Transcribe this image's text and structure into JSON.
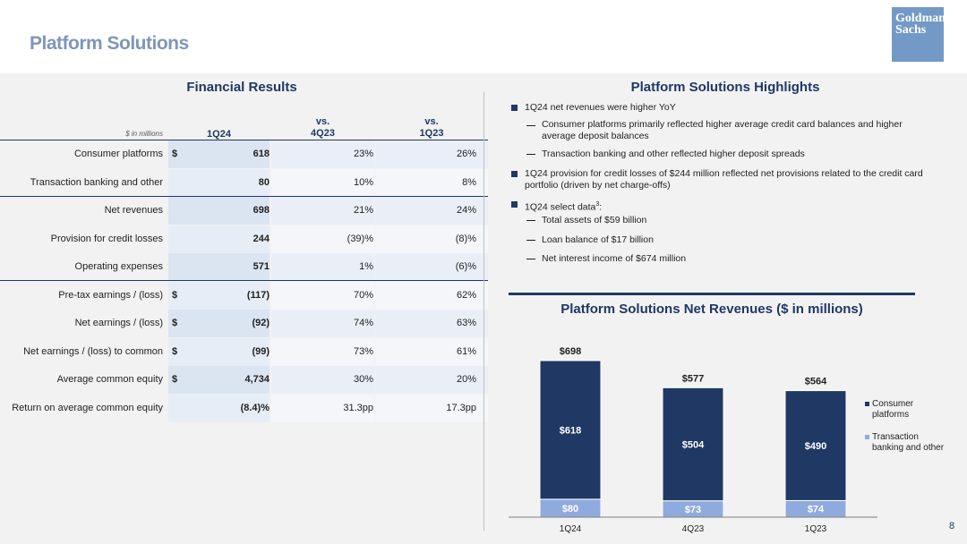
{
  "slide": {
    "title": "Platform Solutions",
    "logo_line1": "Goldman",
    "logo_line2": "Sachs",
    "page_number": "8"
  },
  "financial": {
    "section_title": "Financial Results",
    "units_label": "$ in millions",
    "col1": "1Q24",
    "col2_line1": "vs.",
    "col2_line2": "4Q23",
    "col3_line1": "vs.",
    "col3_line2": "1Q23",
    "rows": [
      {
        "label": "Consumer platforms",
        "dollar": "$",
        "v1": "618",
        "v2": "23%",
        "v3": "26%"
      },
      {
        "label": "Transaction banking and other",
        "dollar": "",
        "v1": "80",
        "v2": "10%",
        "v3": "8%"
      },
      {
        "label": "Net revenues",
        "dollar": "",
        "v1": "698",
        "v2": "21%",
        "v3": "24%"
      },
      {
        "label": "Provision for credit losses",
        "dollar": "",
        "v1": "244",
        "v2": "(39)%",
        "v3": "(8)%"
      },
      {
        "label": "Operating expenses",
        "dollar": "",
        "v1": "571",
        "v2": "1%",
        "v3": "(6)%"
      },
      {
        "label": "Pre-tax earnings / (loss)",
        "dollar": "$",
        "v1": "(117)",
        "v2": "70%",
        "v3": "62%"
      },
      {
        "label": "Net earnings / (loss)",
        "dollar": "$",
        "v1": "(92)",
        "v2": "74%",
        "v3": "63%"
      },
      {
        "label": "Net earnings / (loss) to common",
        "dollar": "$",
        "v1": "(99)",
        "v2": "73%",
        "v3": "61%"
      },
      {
        "label": "Average common equity",
        "dollar": "$",
        "v1": "4,734",
        "v2": "30%",
        "v3": "20%"
      },
      {
        "label": "Return on average common equity",
        "dollar": "",
        "v1": "(8.4)%",
        "v2": "31.3pp",
        "v3": "17.3pp"
      }
    ]
  },
  "highlights": {
    "section_title": "Platform Solutions Highlights",
    "b1": "1Q24 net revenues were higher YoY",
    "b1_s1_line1": "Consumer platforms primarily reflected higher average credit card balances and higher",
    "b1_s1_line2": "average deposit balances",
    "b1_s2": "Transaction banking and other reflected higher deposit spreads",
    "b2_line1": "1Q24 provision for credit losses of $244 million reflected net provisions related to the credit card",
    "b2_line2": "portfolio (driven by net charge-offs)",
    "b3": "1Q24 select data",
    "b3_sup": "3",
    "b3_colon": ":",
    "b3_s1": "Total assets of $59 billion",
    "b3_s2": "Loan balance of $17 billion",
    "b3_s3": "Net interest income of $674 million"
  },
  "chart_data": {
    "type": "bar",
    "stacked": true,
    "title": "Platform Solutions Net Revenues ($ in millions)",
    "categories": [
      "1Q24",
      "4Q23",
      "1Q23"
    ],
    "series": [
      {
        "name": "Transaction banking and other",
        "values": [
          80,
          73,
          74
        ],
        "labels": [
          "$80",
          "$73",
          "$74"
        ],
        "color": "#8faadc"
      },
      {
        "name": "Consumer platforms",
        "values": [
          618,
          504,
          490
        ],
        "labels": [
          "$618",
          "$504",
          "$490"
        ],
        "color": "#1f3864"
      }
    ],
    "totals": [
      698,
      577,
      564
    ],
    "total_labels": [
      "$698",
      "$577",
      "$564"
    ],
    "legend_position": "right",
    "legend": [
      {
        "line1": "Consumer",
        "line2": "platforms",
        "color": "#1f3864"
      },
      {
        "line1": "Transaction",
        "line2": "banking and other",
        "color": "#8faadc"
      }
    ]
  }
}
